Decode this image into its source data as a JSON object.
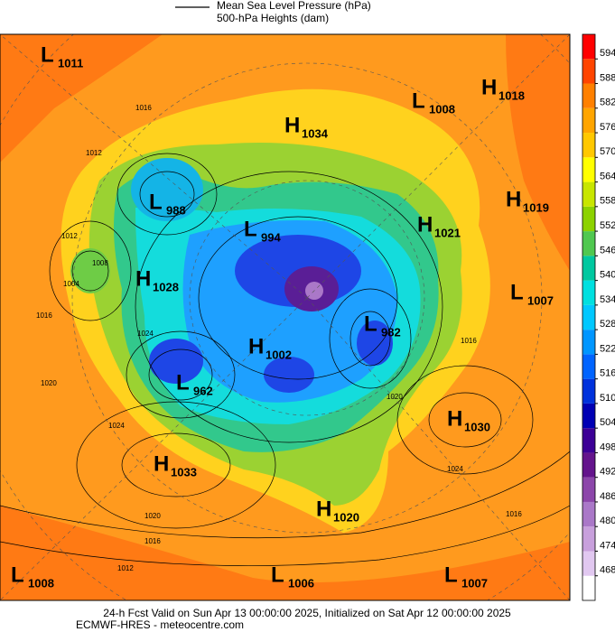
{
  "legend": {
    "line_label": "Mean Sea Level Pressure (hPa)",
    "fill_label": "500-hPa Heights (dam)"
  },
  "colorbar": {
    "ticks": [
      468,
      474,
      480,
      486,
      492,
      498,
      504,
      510,
      516,
      522,
      528,
      534,
      540,
      546,
      552,
      558,
      564,
      570,
      576,
      582,
      588,
      594
    ],
    "colors": [
      "#ffffff",
      "#e1c8f0",
      "#c8a0dc",
      "#aa78c8",
      "#8c46aa",
      "#64148c",
      "#3c0096",
      "#0000b4",
      "#0032dc",
      "#0064ff",
      "#0096ff",
      "#00c8ff",
      "#00e0e0",
      "#00c8a0",
      "#50c850",
      "#8cd200",
      "#c8e600",
      "#ffff00",
      "#ffc800",
      "#ffa500",
      "#ff8000",
      "#ff4500",
      "#ff0000"
    ]
  },
  "centers": [
    {
      "letter": "L",
      "value": 1011
    },
    {
      "letter": "L",
      "value": 1008
    },
    {
      "letter": "H",
      "value": 1018
    },
    {
      "letter": "H",
      "value": 1034
    },
    {
      "letter": "L",
      "value": 988
    },
    {
      "letter": "L",
      "value": 994
    },
    {
      "letter": "H",
      "value": 1021
    },
    {
      "letter": "H",
      "value": 1019
    },
    {
      "letter": "H",
      "value": 1028
    },
    {
      "letter": "L",
      "value": 1007
    },
    {
      "letter": "L",
      "value": 982
    },
    {
      "letter": "H",
      "value": 1002
    },
    {
      "letter": "L",
      "value": 962
    },
    {
      "letter": "H",
      "value": 1030
    },
    {
      "letter": "H",
      "value": 1033
    },
    {
      "letter": "H",
      "value": 1020
    },
    {
      "letter": "L",
      "value": 1008
    },
    {
      "letter": "L",
      "value": 1006
    },
    {
      "letter": "L",
      "value": 1007
    }
  ],
  "isobar_labels": [
    1016,
    1012,
    1004,
    1012,
    1008,
    1016,
    1024,
    1020,
    1024,
    1020,
    1016,
    1016,
    1020,
    1024,
    1016,
    1012
  ],
  "footer": {
    "line1": "24-h Fcst Valid on Sun Apr 13 00:00:00 2025, Initialized on Sat Apr 12 00:00:00 2025",
    "line2": "ECMWF-HRES  - meteocentre.com"
  }
}
